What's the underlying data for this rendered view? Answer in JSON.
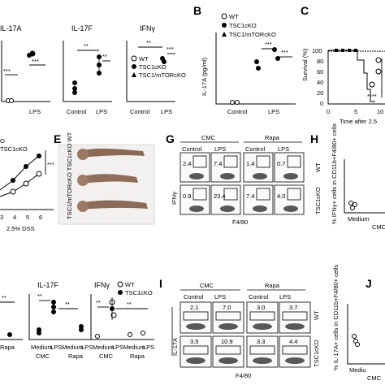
{
  "panels": {
    "A": {
      "titles": [
        "IL-17A",
        "IL-17F",
        "IFNγ"
      ],
      "x_groups": [
        "Control",
        "LPS"
      ],
      "legend": [
        "WT",
        "TSC1cKO",
        "TSC1/mTORcKO"
      ],
      "sig": [
        "***",
        "***",
        "**",
        "**",
        "**",
        "***"
      ]
    },
    "B": {
      "label": "B",
      "ylabel": "IL-17A (pg/ml)",
      "x_groups": [
        "Control",
        "LPS"
      ],
      "legend": [
        "WT",
        "TSC1cKO",
        "TSC1/mTORcKO"
      ],
      "sig": [
        "***",
        "***"
      ]
    },
    "C": {
      "label": "C",
      "ylabel": "Survival (%)",
      "yticks": [
        "100",
        "80",
        "60",
        "40",
        "20",
        "0"
      ],
      "xticks": [
        "0",
        "5",
        "10"
      ],
      "xlabel": "Time after 2.5",
      "sig": "****"
    },
    "D": {
      "legend": [
        "O",
        "TSC1cKO"
      ],
      "xticks": [
        "3",
        "4",
        "5",
        "6"
      ],
      "xlabel": "2.5% DSS",
      "sig": "***"
    },
    "E": {
      "label": "E",
      "rows": [
        "TSC1/mTORcKO",
        "TSC1cKO",
        "WT"
      ]
    },
    "G": {
      "label": "G",
      "groups": [
        "CMC",
        "Rapa"
      ],
      "conditions": [
        "Control",
        "LPS",
        "Control",
        "LPS"
      ],
      "row1_values": [
        "2.4",
        "7.4",
        "1.4",
        "0.7"
      ],
      "row2_values": [
        "0.9",
        "23.4",
        "7.4",
        "4.0"
      ],
      "ylabel": "IFNγ",
      "xlabel": "F4/80"
    },
    "H": {
      "label": "H",
      "row_labels": [
        "WT",
        "TSC1cKO"
      ],
      "ylabel": "% IFNγ+ cells in CD11b+F4/80+ cells",
      "xticks": [
        "Medium"
      ],
      "group": "CMC"
    },
    "F_lower": {
      "titles": [
        "IL-17F",
        "IFNγ"
      ],
      "legend": [
        "WT",
        "TSC1cKO"
      ],
      "xticks": [
        "Medium",
        "LPS",
        "Medium",
        "LPS"
      ],
      "groups": [
        "CMC",
        "Rapa"
      ],
      "clipped_left": [
        "Medium",
        "Rapa"
      ],
      "sig": [
        "**",
        "**",
        "**",
        "**",
        "**"
      ]
    },
    "I": {
      "label": "I",
      "groups": [
        "CMC",
        "Rapa"
      ],
      "conditions": [
        "Control",
        "LPS",
        "Control",
        "LPS"
      ],
      "row1_values": [
        "2.1",
        "7.0",
        "3.0",
        "3.7"
      ],
      "row2_values": [
        "3.5",
        "10.9",
        "3.3",
        "4.4"
      ],
      "row_labels": [
        "WT",
        "TSC1cKO"
      ],
      "ylabel": "IL-17A",
      "xlabel": "F4/80"
    },
    "J": {
      "label": "J",
      "ylabel": "% IL-17A+ cells in CD11b+F4/80+ cells",
      "xticks": [
        "Mediu"
      ],
      "group": "CMC"
    }
  }
}
